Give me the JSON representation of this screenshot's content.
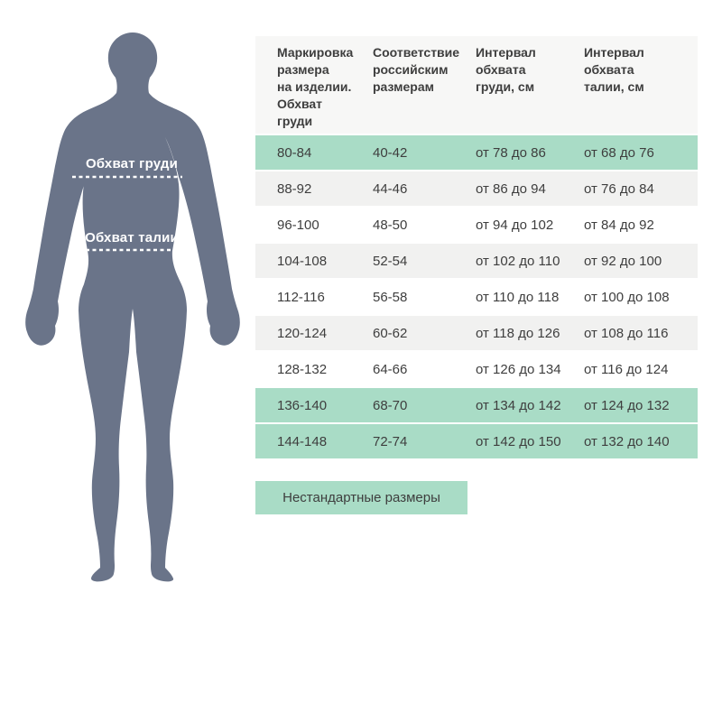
{
  "figure": {
    "chest_measure_label": "Обхват груди",
    "waist_measure_label": "Обхват талии"
  },
  "table": {
    "headers": [
      "Маркировка\nразмера\nна изделии.\nОбхват\nгруди",
      "Соответствие\nроссийским\nразмерам",
      "Интервал\nобхвата\nгруди, см",
      "Интервал\nобхвата\nталии, см"
    ],
    "rows": [
      {
        "marking": "80-84",
        "ru_size": "40-42",
        "chest": "от 78 до 86",
        "waist": "от 68 до 76",
        "bg": "green"
      },
      {
        "marking": "88-92",
        "ru_size": "44-46",
        "chest": "от 86 до 94",
        "waist": "от 76 до 84",
        "bg": "gray"
      },
      {
        "marking": "96-100",
        "ru_size": "48-50",
        "chest": "от 94 до 102",
        "waist": "от 84 до 92",
        "bg": "white"
      },
      {
        "marking": "104-108",
        "ru_size": "52-54",
        "chest": "от 102 до 110",
        "waist": "от 92 до 100",
        "bg": "gray"
      },
      {
        "marking": "112-116",
        "ru_size": "56-58",
        "chest": "от 110 до 118",
        "waist": "от 100 до 108",
        "bg": "white"
      },
      {
        "marking": "120-124",
        "ru_size": "60-62",
        "chest": "от 118 до 126",
        "waist": "от 108 до 116",
        "bg": "gray"
      },
      {
        "marking": "128-132",
        "ru_size": "64-66",
        "chest": "от 126 до 134",
        "waist": "от 116 до 124",
        "bg": "white"
      },
      {
        "marking": "136-140",
        "ru_size": "68-70",
        "chest": "от 134 до 142",
        "waist": "от 124 до 132",
        "bg": "green"
      },
      {
        "marking": "144-148",
        "ru_size": "72-74",
        "chest": "от 142 до 150",
        "waist": "от 132 до 140",
        "bg": "green"
      }
    ]
  },
  "button": {
    "label": "Нестандартные размеры"
  },
  "colors": {
    "highlight_green": "#a9dcc6",
    "row_gray": "#f1f1f0",
    "header_bg": "#f7f7f6",
    "text": "#3e3e3e",
    "body_silhouette": "#6a7489"
  }
}
